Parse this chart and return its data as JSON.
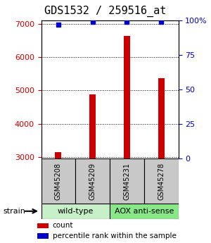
{
  "title": "GDS1532 / 259516_at",
  "samples": [
    "GSM45208",
    "GSM45209",
    "GSM45231",
    "GSM45278"
  ],
  "counts": [
    3150,
    4880,
    6650,
    5380
  ],
  "percentile_ranks": [
    97,
    99,
    99,
    99
  ],
  "groups": [
    {
      "name": "wild-type",
      "indices": [
        0,
        1
      ],
      "color": "#c8f0c8"
    },
    {
      "name": "AOX anti-sense",
      "indices": [
        2,
        3
      ],
      "color": "#88e888"
    }
  ],
  "strain_label": "strain",
  "ylim_left": [
    2950,
    7100
  ],
  "ylim_right": [
    0,
    100
  ],
  "yticks_left": [
    3000,
    4000,
    5000,
    6000,
    7000
  ],
  "yticks_right": [
    0,
    25,
    50,
    75,
    100
  ],
  "ytick_labels_right": [
    "0",
    "25",
    "50",
    "75",
    "100%"
  ],
  "bar_color": "#cc0000",
  "scatter_color": "#0000cc",
  "bar_width": 0.18,
  "legend_items": [
    {
      "label": "count",
      "color": "#cc0000"
    },
    {
      "label": "percentile rank within the sample",
      "color": "#0000cc"
    }
  ],
  "grid_color": "#000000",
  "title_fontsize": 11,
  "tick_fontsize": 8,
  "sample_fontsize": 7,
  "group_fontsize": 8,
  "legend_fontsize": 7.5
}
